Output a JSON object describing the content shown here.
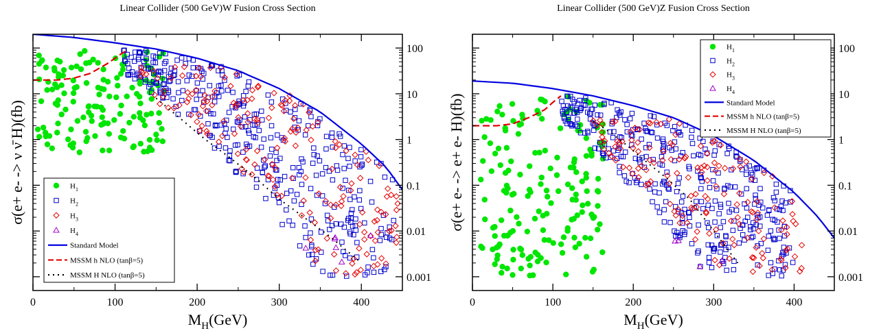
{
  "colors": {
    "H1": "#00e600",
    "H2": "#0000cc",
    "H3": "#e60000",
    "H4": "#a000c8",
    "SM": "#0000e0",
    "h_nlo": "#e00000",
    "H_nlo": "#000000"
  },
  "chart_data": [
    {
      "type": "scatter",
      "title": "Linear Collider (500 GeV)W Fusion Cross Section",
      "xlabel": "M_H(GeV)",
      "ylabel": "σ(e+ e- -> ν ν̄ H)(fb)",
      "x_ticks": [
        "0",
        "100",
        "200",
        "300",
        "400"
      ],
      "y_ticks": [
        "0.001",
        "0.01",
        "0.1",
        "1",
        "10",
        "100"
      ],
      "xlim": [
        0,
        450
      ],
      "ylim": [
        0.0005,
        200
      ],
      "y_scale": "log",
      "legend_position": "bottom-left",
      "legend": [
        "H_1",
        "H_2",
        "H_3",
        "H_4",
        "Standard Model",
        "MSSM h NLO (tanβ=5)",
        "MSSM H NLO (tanβ=5)"
      ],
      "series": [
        {
          "name": "Standard Model",
          "style": "line",
          "x": [
            0,
            50,
            100,
            150,
            200,
            250,
            300,
            350,
            400,
            430,
            450
          ],
          "y": [
            200,
            170,
            130,
            95,
            60,
            32,
            13,
            4,
            0.8,
            0.25,
            0.08
          ]
        },
        {
          "name": "MSSM h NLO (tanβ=5)",
          "style": "dash",
          "x": [
            0,
            30,
            50,
            70,
            90,
            100,
            110,
            115
          ],
          "y": [
            20,
            20,
            22,
            28,
            45,
            60,
            80,
            90
          ]
        },
        {
          "name": "MSSM H NLO (tanβ=5)",
          "style": "dot",
          "x": [
            150,
            170,
            190,
            210,
            240,
            270,
            300,
            330,
            360,
            380,
            400
          ],
          "y": [
            8,
            4,
            2,
            1,
            0.4,
            0.15,
            0.05,
            0.02,
            0.008,
            0.004,
            0.002
          ]
        },
        {
          "name": "H_1",
          "style": "circle",
          "region": {
            "x": [
              5,
              160
            ],
            "y": [
              0.5,
              90
            ]
          },
          "count": 150
        },
        {
          "name": "H_2",
          "style": "square",
          "region": {
            "x": [
              110,
              440
            ],
            "y": [
              0.001,
              90
            ]
          },
          "count": 380
        },
        {
          "name": "H_3",
          "style": "diamond",
          "region": {
            "x": [
              130,
              445
            ],
            "y": [
              0.001,
              40
            ]
          },
          "count": 180
        },
        {
          "name": "H_4",
          "style": "triangle",
          "region": {
            "x": [
              330,
              440
            ],
            "y": [
              0.001,
              0.01
            ]
          },
          "count": 6
        }
      ]
    },
    {
      "type": "scatter",
      "title": "Linear Collider (500 GeV)Z Fusion Cross Section",
      "xlabel": "M_H(GeV)",
      "ylabel": "σ(e+ e- -> e+ e- H)(fb)",
      "x_ticks": [
        "0",
        "100",
        "200",
        "300",
        "400"
      ],
      "y_ticks": [
        "0.001",
        "0.01",
        "0.1",
        "1",
        "10",
        "100"
      ],
      "xlim": [
        0,
        450
      ],
      "ylim": [
        0.0005,
        200
      ],
      "y_scale": "log",
      "legend_position": "top-right",
      "legend": [
        "H_1",
        "H_2",
        "H_3",
        "H_4",
        "Standard Model",
        "MSSM h NLO (tanβ=5)",
        "MSSM H NLO (tanβ=5)"
      ],
      "series": [
        {
          "name": "Standard Model",
          "style": "line",
          "x": [
            0,
            50,
            100,
            150,
            200,
            250,
            300,
            350,
            400,
            430,
            450
          ],
          "y": [
            19,
            17,
            13,
            9,
            5.5,
            3,
            1.2,
            0.35,
            0.07,
            0.02,
            0.007
          ]
        },
        {
          "name": "MSSM h NLO (tanβ=5)",
          "style": "dash",
          "x": [
            0,
            30,
            50,
            70,
            90,
            100,
            110
          ],
          "y": [
            2,
            2,
            2.2,
            3,
            4.5,
            6.5,
            9
          ]
        },
        {
          "name": "MSSM H NLO (tanβ=5)",
          "style": "dot",
          "x": [
            150,
            170,
            190,
            210,
            240,
            270,
            300,
            330
          ],
          "y": [
            2.5,
            1.5,
            0.8,
            0.4,
            0.15,
            0.05,
            0.01,
            0.002
          ]
        },
        {
          "name": "H_1",
          "style": "circle",
          "region": {
            "x": [
              10,
              165
            ],
            "y": [
              0.001,
              9
            ]
          },
          "count": 180
        },
        {
          "name": "H_2",
          "style": "square",
          "region": {
            "x": [
              110,
              400
            ],
            "y": [
              0.001,
              9
            ]
          },
          "count": 380
        },
        {
          "name": "H_3",
          "style": "diamond",
          "region": {
            "x": [
              150,
              410
            ],
            "y": [
              0.001,
              3
            ]
          },
          "count": 150
        },
        {
          "name": "H_4",
          "style": "triangle",
          "region": {
            "x": [
              250,
              400
            ],
            "y": [
              0.001,
              0.01
            ]
          },
          "count": 4
        }
      ]
    }
  ]
}
